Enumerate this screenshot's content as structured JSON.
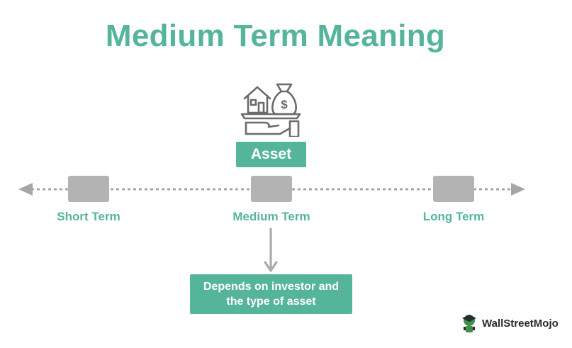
{
  "title": "Medium Term Meaning",
  "asset": {
    "label": "Asset",
    "icon": "house-money-bag-hand-icon"
  },
  "timeline": {
    "terms": [
      {
        "label": "Short Term"
      },
      {
        "label": "Medium Term"
      },
      {
        "label": "Long Term"
      }
    ]
  },
  "description": {
    "line1": "Depends on investor and",
    "line2": "the type of asset"
  },
  "brand": {
    "name": "WallStreetMojo"
  },
  "colors": {
    "accent": "#55b59a",
    "node": "#b3b3b3",
    "line": "#a6a6a6",
    "icon": "#6b6b6b"
  }
}
